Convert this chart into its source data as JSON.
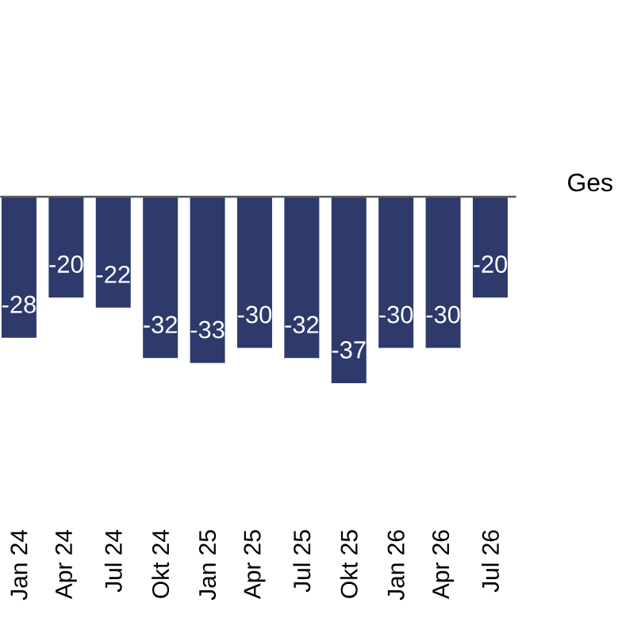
{
  "chart_data": {
    "type": "bar",
    "categories": [
      "Jan 24",
      "Apr 24",
      "Jul 24",
      "Okt 24",
      "Jan 25",
      "Apr 25",
      "Jul 25",
      "Okt 25",
      "Jan 26",
      "Apr 26",
      "Jul 26"
    ],
    "values": [
      -28,
      -20,
      -22,
      -32,
      -33,
      -30,
      -32,
      -37,
      -30,
      -30,
      -20
    ],
    "color": "#2e3a6b",
    "data_labels": true,
    "annotations": [
      "Ges"
    ]
  }
}
